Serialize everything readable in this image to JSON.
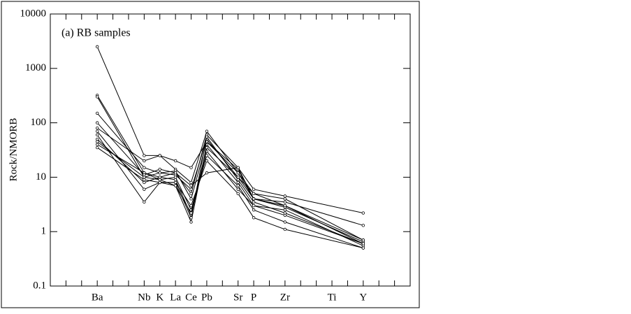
{
  "chart_data": {
    "type": "line",
    "log_y": true,
    "y_label": "Rock/NMORB",
    "annotation": "(a) RB samples",
    "categories": [
      "Ba",
      "Nb",
      "K",
      "La",
      "Ce",
      "Pb",
      "Sr",
      "P",
      "Zr",
      "Y"
    ],
    "unplotted_categories": [
      "Ti"
    ],
    "ylim": [
      0.1,
      10000
    ],
    "yticks": [
      0.1,
      1,
      10,
      100,
      1000,
      10000
    ],
    "series": [
      {
        "color": "#000000",
        "values": [
          2500,
          25,
          25,
          20,
          15,
          45,
          12,
          5,
          3,
          0.6
        ]
      },
      {
        "color": "#000000",
        "values": [
          320,
          12,
          10,
          12,
          5,
          60,
          15,
          6,
          4.5,
          2.2
        ]
      },
      {
        "color": "#000000",
        "values": [
          300,
          10,
          12,
          11,
          6,
          50,
          10,
          4,
          3.5,
          1.3
        ]
      },
      {
        "color": "#000000",
        "values": [
          80,
          20,
          25,
          14,
          8,
          70,
          12,
          4,
          3,
          0.7
        ]
      },
      {
        "color": "#000000",
        "values": [
          60,
          3.5,
          8,
          7,
          1.5,
          40,
          8,
          3,
          2,
          0.6
        ]
      },
      {
        "color": "#000000",
        "values": [
          50,
          8,
          10,
          9,
          2,
          30,
          6,
          3,
          2.5,
          0.55
        ]
      },
      {
        "color": "#000000",
        "values": [
          40,
          12,
          9,
          10,
          2.5,
          25,
          7,
          2.5,
          1.5,
          0.5
        ]
      },
      {
        "color": "#000000",
        "values": [
          35,
          9,
          8,
          8,
          3,
          20,
          5,
          1.8,
          1.1,
          0.5
        ]
      },
      {
        "color": "#000000",
        "values": [
          150,
          15,
          12,
          13,
          4,
          45,
          14,
          4,
          2.8,
          0.65
        ]
      },
      {
        "color": "#000000",
        "values": [
          70,
          6,
          8,
          8,
          1.8,
          55,
          9,
          3.5,
          2.2,
          0.6
        ]
      },
      {
        "color": "#000000",
        "values": [
          100,
          11,
          14,
          12,
          7,
          12,
          15,
          4,
          3,
          0.6
        ]
      },
      {
        "color": "#000000",
        "values": [
          45,
          10,
          9,
          7,
          2.2,
          35,
          10,
          5,
          4,
          0.7
        ]
      }
    ]
  }
}
